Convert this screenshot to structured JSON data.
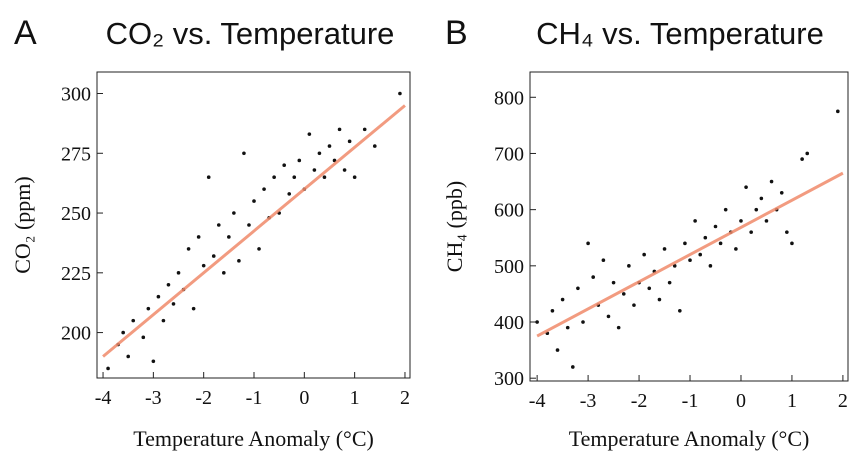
{
  "chart_data": [
    {
      "type": "scatter",
      "panel_label": "A",
      "title": "CO₂ vs. Temperature",
      "xlabel": "Temperature Anomaly (°C)",
      "ylabel": "CO₂ (ppm)",
      "xlim": [
        -4.12,
        2.1
      ],
      "ylim": [
        181,
        309
      ],
      "xticks": [
        -4,
        -3,
        -2,
        -1,
        0,
        1,
        2
      ],
      "yticks": [
        200,
        225,
        250,
        275,
        300
      ],
      "series": [
        {
          "type": "scatter",
          "color": "#111111",
          "x": [
            -3.9,
            -3.7,
            -3.6,
            -3.5,
            -3.4,
            -3.2,
            -3.1,
            -3.0,
            -2.9,
            -2.8,
            -2.7,
            -2.6,
            -2.5,
            -2.4,
            -2.3,
            -2.2,
            -2.1,
            -2.0,
            -1.9,
            -1.8,
            -1.7,
            -1.6,
            -1.5,
            -1.4,
            -1.3,
            -1.2,
            -1.1,
            -1.0,
            -0.9,
            -0.8,
            -0.7,
            -0.6,
            -0.5,
            -0.4,
            -0.3,
            -0.2,
            -0.1,
            0.0,
            0.1,
            0.2,
            0.3,
            0.4,
            0.5,
            0.6,
            0.7,
            0.8,
            0.9,
            1.0,
            1.2,
            1.4,
            1.9
          ],
          "values": [
            185,
            195,
            200,
            190,
            205,
            198,
            210,
            188,
            215,
            205,
            220,
            212,
            225,
            218,
            235,
            210,
            240,
            228,
            265,
            232,
            245,
            225,
            240,
            250,
            230,
            275,
            245,
            255,
            235,
            260,
            248,
            265,
            250,
            270,
            258,
            265,
            272,
            260,
            283,
            268,
            275,
            265,
            278,
            272,
            285,
            268,
            280,
            265,
            285,
            278,
            300
          ]
        },
        {
          "type": "line",
          "color": "#f08a6a",
          "x": [
            -4,
            2
          ],
          "values": [
            190,
            295
          ]
        }
      ]
    },
    {
      "type": "scatter",
      "panel_label": "B",
      "title": "CH₄ vs. Temperature",
      "xlabel": "Temperature Anomaly (°C)",
      "ylabel": "CH₄ (ppb)",
      "xlim": [
        -4.14,
        2.1
      ],
      "ylim": [
        295,
        845
      ],
      "xticks": [
        -4,
        -3,
        -2,
        -1,
        0,
        1,
        2
      ],
      "yticks": [
        300,
        400,
        500,
        600,
        700,
        800
      ],
      "series": [
        {
          "type": "scatter",
          "color": "#111111",
          "x": [
            -4.0,
            -3.8,
            -3.7,
            -3.6,
            -3.5,
            -3.4,
            -3.3,
            -3.2,
            -3.1,
            -3.0,
            -2.9,
            -2.8,
            -2.7,
            -2.6,
            -2.5,
            -2.4,
            -2.3,
            -2.2,
            -2.1,
            -2.0,
            -1.9,
            -1.8,
            -1.7,
            -1.6,
            -1.5,
            -1.4,
            -1.3,
            -1.2,
            -1.1,
            -1.0,
            -0.9,
            -0.8,
            -0.7,
            -0.6,
            -0.5,
            -0.4,
            -0.3,
            -0.2,
            -0.1,
            0.0,
            0.1,
            0.2,
            0.3,
            0.4,
            0.5,
            0.6,
            0.7,
            0.8,
            0.9,
            1.0,
            1.2,
            1.3,
            1.9
          ],
          "values": [
            400,
            380,
            420,
            350,
            440,
            390,
            320,
            460,
            400,
            540,
            480,
            430,
            510,
            410,
            470,
            390,
            450,
            500,
            430,
            470,
            520,
            460,
            490,
            440,
            530,
            470,
            500,
            420,
            540,
            510,
            580,
            520,
            550,
            500,
            570,
            540,
            600,
            560,
            530,
            580,
            640,
            560,
            600,
            620,
            580,
            650,
            600,
            630,
            560,
            540,
            690,
            700,
            775
          ]
        },
        {
          "type": "line",
          "color": "#f08a6a",
          "x": [
            -4,
            2
          ],
          "values": [
            375,
            665
          ]
        }
      ]
    }
  ]
}
